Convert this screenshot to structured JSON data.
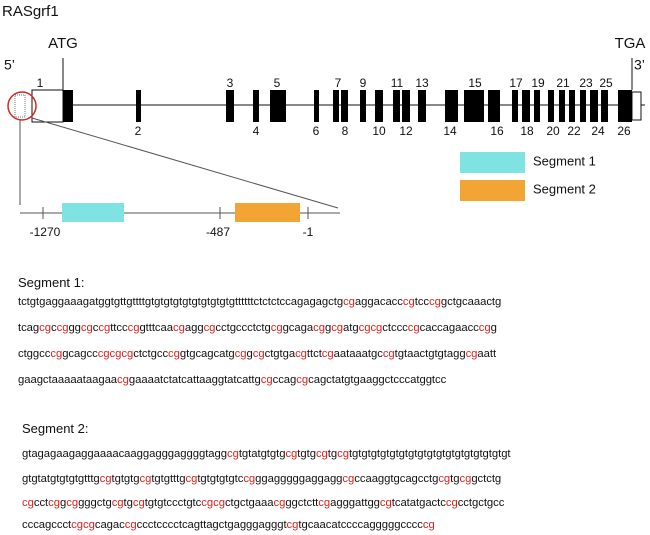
{
  "gene": {
    "name": "RASgrf1",
    "start_codon": "ATG",
    "stop_codon": "TGA",
    "five_prime": "5’",
    "three_prime": "3’",
    "exons": [
      "1",
      "2",
      "3",
      "4",
      "5",
      "6",
      "7",
      "8",
      "9",
      "10",
      "11",
      "12",
      "13",
      "14",
      "15",
      "16",
      "17",
      "18",
      "19",
      "20",
      "21",
      "22",
      "23",
      "24",
      "25",
      "26"
    ]
  },
  "zoom": {
    "positions": [
      "-1270",
      "-487",
      "-1"
    ]
  },
  "legend": [
    "Segment 1",
    "Segment 2"
  ],
  "segments": [
    {
      "title": "Segment 1:",
      "lines": [
        "tctgtgaggaaagatggtgttgttttgtgtgtgtgtgtgtgtgtgttttttctctctccagagagctgcgaggacacccgtcccggctgcaaactg",
        "tcagcgccgggcgccgttcccggtttcaacgaggcgcctgccctctgcggcagacggcgatgcgcgctccccgcaccagaacccgg",
        "ctggcccggcagcccgcgcgctctgcccggtgcagcatgcggcgctgtgacgttctcgaataaatgccgtgtaactgtgtaggcgaatt",
        "gaagctaaaaataagaacggaaaatctatcattaaggtatcattgcgccagcgcagctatgtgaaggctcccatggtcc"
      ]
    },
    {
      "title": "Segment  2:",
      "lines": [
        "gtagagaagaggaaaacaaggagggaggggtaggcgtgtatgtgtgcgtgtgcgtgcgtgtgtgtgtgtgtgtgtgtgtgtgtgtgtgtgtgt",
        "gtgtatgtgtgtgtttgcgtgtgtgcgtgtgtttgcgtgtgtgtgtccgggagggggaggaggcgccaaggtgcagcctgcgtgcggctctg",
        "cgcctcggcggggctgcgtgcgtgtgtccctgtccgcgctgctgaaacgggctcttcgagggattggcgtcatatgactccgcctgctgcc",
        "cccagccctcgcgcagaccgccctcccctcagttagctgagggagggtcgtgcaacatccccagggggcccccg"
      ]
    }
  ]
}
